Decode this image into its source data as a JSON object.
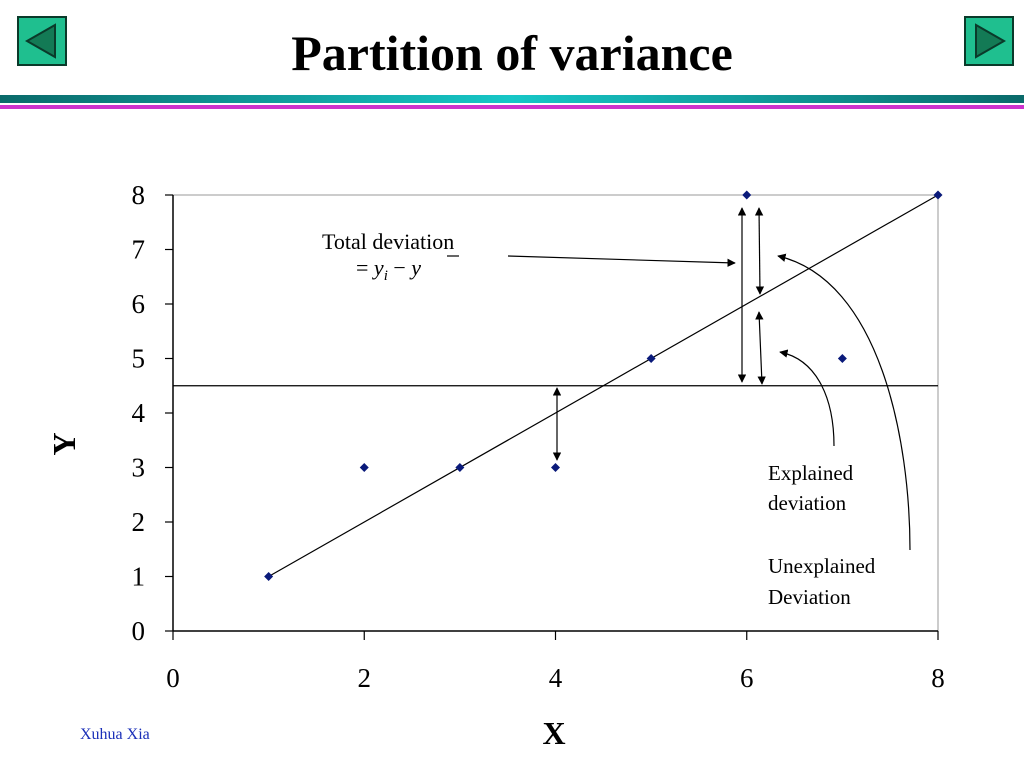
{
  "slide": {
    "title": "Partition of variance",
    "footer": "Xuhua Xia"
  },
  "nav": {
    "prev_icon": "triangle-left-icon",
    "next_icon": "triangle-right-icon",
    "button_color": "#1fbf8f"
  },
  "chart_data": {
    "type": "scatter",
    "xlabel": "X",
    "ylabel": "Y",
    "xlim": [
      0,
      8
    ],
    "ylim": [
      0,
      8
    ],
    "xticks": [
      0,
      2,
      4,
      6,
      8
    ],
    "yticks": [
      0,
      1,
      2,
      3,
      4,
      5,
      6,
      7,
      8
    ],
    "points": [
      {
        "x": 1,
        "y": 1
      },
      {
        "x": 2,
        "y": 3
      },
      {
        "x": 3,
        "y": 3
      },
      {
        "x": 4,
        "y": 3
      },
      {
        "x": 5,
        "y": 5
      },
      {
        "x": 6,
        "y": 8
      },
      {
        "x": 7,
        "y": 5
      },
      {
        "x": 8,
        "y": 8
      }
    ],
    "regression_line": {
      "x": [
        1,
        8
      ],
      "y": [
        1,
        8
      ]
    },
    "mean_y": 4.5,
    "point_color": "#0a1a7a",
    "annotations": {
      "total_line1": "Total deviation",
      "total_eq_prefix": "= ",
      "total_y": "y",
      "total_sub": "i",
      "total_minus": " − ",
      "total_ybar": "y",
      "explained_line1": "Explained",
      "explained_line2": "deviation",
      "unexplained_line1": "Unexplained",
      "unexplained_line2": "Deviation"
    }
  }
}
